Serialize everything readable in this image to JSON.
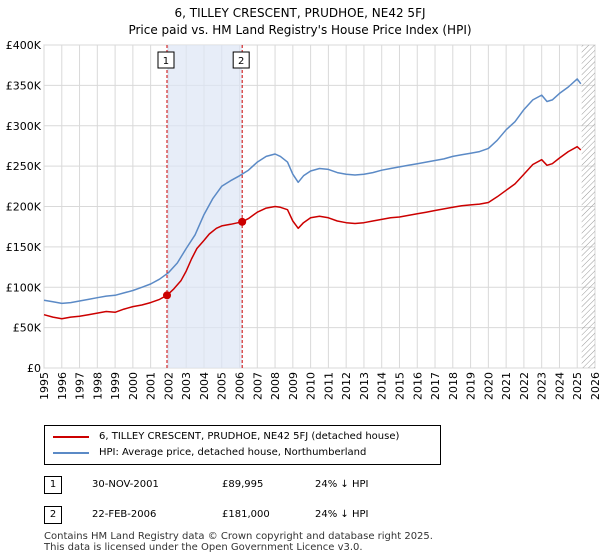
{
  "header": {
    "title": "6, TILLEY CRESCENT, PRUDHOE, NE42 5FJ",
    "subtitle": "Price paid vs. HM Land Registry's House Price Index (HPI)"
  },
  "chart_data": {
    "type": "line",
    "x_range": [
      1995,
      2026
    ],
    "ylim": [
      0,
      400000
    ],
    "y_ticks": [
      {
        "value": 0,
        "label": "£0"
      },
      {
        "value": 50000,
        "label": "£50K"
      },
      {
        "value": 100000,
        "label": "£100K"
      },
      {
        "value": 150000,
        "label": "£150K"
      },
      {
        "value": 200000,
        "label": "£200K"
      },
      {
        "value": 250000,
        "label": "£250K"
      },
      {
        "value": 300000,
        "label": "£300K"
      },
      {
        "value": 350000,
        "label": "£350K"
      },
      {
        "value": 400000,
        "label": "£400K"
      }
    ],
    "x_ticks": [
      "1995",
      "1996",
      "1997",
      "1998",
      "1999",
      "2000",
      "2001",
      "2002",
      "2003",
      "2004",
      "2005",
      "2006",
      "2007",
      "2008",
      "2009",
      "2010",
      "2011",
      "2012",
      "2013",
      "2014",
      "2015",
      "2016",
      "2017",
      "2018",
      "2019",
      "2020",
      "2021",
      "2022",
      "2023",
      "2024",
      "2025",
      "2026"
    ],
    "grid": true,
    "series": [
      {
        "name": "6, TILLEY CRESCENT, PRUDHOE, NE42 5FJ (detached house)",
        "color": "#cc0000",
        "points": [
          [
            1995.0,
            66000
          ],
          [
            1995.5,
            63000
          ],
          [
            1996.0,
            61000
          ],
          [
            1996.5,
            63000
          ],
          [
            1997.0,
            64000
          ],
          [
            1997.5,
            66000
          ],
          [
            1998.0,
            68000
          ],
          [
            1998.5,
            70000
          ],
          [
            1999.0,
            69000
          ],
          [
            1999.5,
            73000
          ],
          [
            2000.0,
            76000
          ],
          [
            2000.5,
            78000
          ],
          [
            2001.0,
            81000
          ],
          [
            2001.5,
            85000
          ],
          [
            2001.92,
            89995
          ],
          [
            2002.3,
            98000
          ],
          [
            2002.7,
            108000
          ],
          [
            2003.0,
            120000
          ],
          [
            2003.3,
            135000
          ],
          [
            2003.6,
            148000
          ],
          [
            2004.0,
            158000
          ],
          [
            2004.3,
            166000
          ],
          [
            2004.7,
            173000
          ],
          [
            2005.0,
            176000
          ],
          [
            2005.5,
            178000
          ],
          [
            2006.15,
            181000
          ],
          [
            2006.5,
            185000
          ],
          [
            2007.0,
            193000
          ],
          [
            2007.5,
            198000
          ],
          [
            2008.0,
            200000
          ],
          [
            2008.3,
            199000
          ],
          [
            2008.7,
            196000
          ],
          [
            2009.0,
            182000
          ],
          [
            2009.3,
            173000
          ],
          [
            2009.6,
            180000
          ],
          [
            2010.0,
            186000
          ],
          [
            2010.5,
            188000
          ],
          [
            2011.0,
            186000
          ],
          [
            2011.5,
            182000
          ],
          [
            2012.0,
            180000
          ],
          [
            2012.5,
            179000
          ],
          [
            2013.0,
            180000
          ],
          [
            2013.5,
            182000
          ],
          [
            2014.0,
            184000
          ],
          [
            2014.5,
            186000
          ],
          [
            2015.0,
            187000
          ],
          [
            2015.5,
            189000
          ],
          [
            2016.0,
            191000
          ],
          [
            2016.5,
            193000
          ],
          [
            2017.0,
            195000
          ],
          [
            2017.5,
            197000
          ],
          [
            2018.0,
            199000
          ],
          [
            2018.5,
            201000
          ],
          [
            2019.0,
            202000
          ],
          [
            2019.5,
            203000
          ],
          [
            2020.0,
            205000
          ],
          [
            2020.5,
            212000
          ],
          [
            2021.0,
            220000
          ],
          [
            2021.5,
            228000
          ],
          [
            2022.0,
            240000
          ],
          [
            2022.5,
            252000
          ],
          [
            2023.0,
            258000
          ],
          [
            2023.3,
            251000
          ],
          [
            2023.6,
            253000
          ],
          [
            2024.0,
            260000
          ],
          [
            2024.5,
            268000
          ],
          [
            2025.0,
            274000
          ],
          [
            2025.2,
            270000
          ]
        ]
      },
      {
        "name": "HPI: Average price, detached house, Northumberland",
        "color": "#5b8ac6",
        "points": [
          [
            1995.0,
            84000
          ],
          [
            1995.5,
            82000
          ],
          [
            1996.0,
            80000
          ],
          [
            1996.5,
            81000
          ],
          [
            1997.0,
            83000
          ],
          [
            1997.5,
            85000
          ],
          [
            1998.0,
            87000
          ],
          [
            1998.5,
            89000
          ],
          [
            1999.0,
            90000
          ],
          [
            1999.5,
            93000
          ],
          [
            2000.0,
            96000
          ],
          [
            2000.5,
            100000
          ],
          [
            2001.0,
            104000
          ],
          [
            2001.5,
            110000
          ],
          [
            2002.0,
            118000
          ],
          [
            2002.5,
            130000
          ],
          [
            2003.0,
            148000
          ],
          [
            2003.5,
            165000
          ],
          [
            2004.0,
            190000
          ],
          [
            2004.5,
            210000
          ],
          [
            2005.0,
            225000
          ],
          [
            2005.5,
            232000
          ],
          [
            2006.0,
            238000
          ],
          [
            2006.5,
            245000
          ],
          [
            2007.0,
            255000
          ],
          [
            2007.5,
            262000
          ],
          [
            2008.0,
            265000
          ],
          [
            2008.3,
            262000
          ],
          [
            2008.7,
            255000
          ],
          [
            2009.0,
            240000
          ],
          [
            2009.3,
            230000
          ],
          [
            2009.6,
            238000
          ],
          [
            2010.0,
            244000
          ],
          [
            2010.5,
            247000
          ],
          [
            2011.0,
            246000
          ],
          [
            2011.5,
            242000
          ],
          [
            2012.0,
            240000
          ],
          [
            2012.5,
            239000
          ],
          [
            2013.0,
            240000
          ],
          [
            2013.5,
            242000
          ],
          [
            2014.0,
            245000
          ],
          [
            2014.5,
            247000
          ],
          [
            2015.0,
            249000
          ],
          [
            2015.5,
            251000
          ],
          [
            2016.0,
            253000
          ],
          [
            2016.5,
            255000
          ],
          [
            2017.0,
            257000
          ],
          [
            2017.5,
            259000
          ],
          [
            2018.0,
            262000
          ],
          [
            2018.5,
            264000
          ],
          [
            2019.0,
            266000
          ],
          [
            2019.5,
            268000
          ],
          [
            2020.0,
            272000
          ],
          [
            2020.5,
            282000
          ],
          [
            2021.0,
            295000
          ],
          [
            2021.5,
            305000
          ],
          [
            2022.0,
            320000
          ],
          [
            2022.5,
            332000
          ],
          [
            2023.0,
            338000
          ],
          [
            2023.3,
            330000
          ],
          [
            2023.6,
            332000
          ],
          [
            2024.0,
            340000
          ],
          [
            2024.5,
            348000
          ],
          [
            2025.0,
            358000
          ],
          [
            2025.2,
            352000
          ]
        ]
      }
    ],
    "sale_markers": [
      {
        "label": "1",
        "x": 2001.92,
        "value": 89995
      },
      {
        "label": "2",
        "x": 2006.15,
        "value": 181000
      }
    ],
    "shaded_span": [
      2001.92,
      2006.15
    ],
    "hatched_from": 2025.25
  },
  "legend": {
    "items": [
      {
        "label": "6, TILLEY CRESCENT, PRUDHOE, NE42 5FJ (detached house)",
        "color": "#cc0000"
      },
      {
        "label": "HPI: Average price, detached house, Northumberland",
        "color": "#5b8ac6"
      }
    ]
  },
  "sales": [
    {
      "badge": "1",
      "date": "30-NOV-2001",
      "price": "£89,995",
      "hpi": "24% ↓ HPI"
    },
    {
      "badge": "2",
      "date": "22-FEB-2006",
      "price": "£181,000",
      "hpi": "24% ↓ HPI"
    }
  ],
  "footer": {
    "line1": "Contains HM Land Registry data © Crown copyright and database right 2025.",
    "line2": "This data is licensed under the Open Government Licence v3.0."
  }
}
